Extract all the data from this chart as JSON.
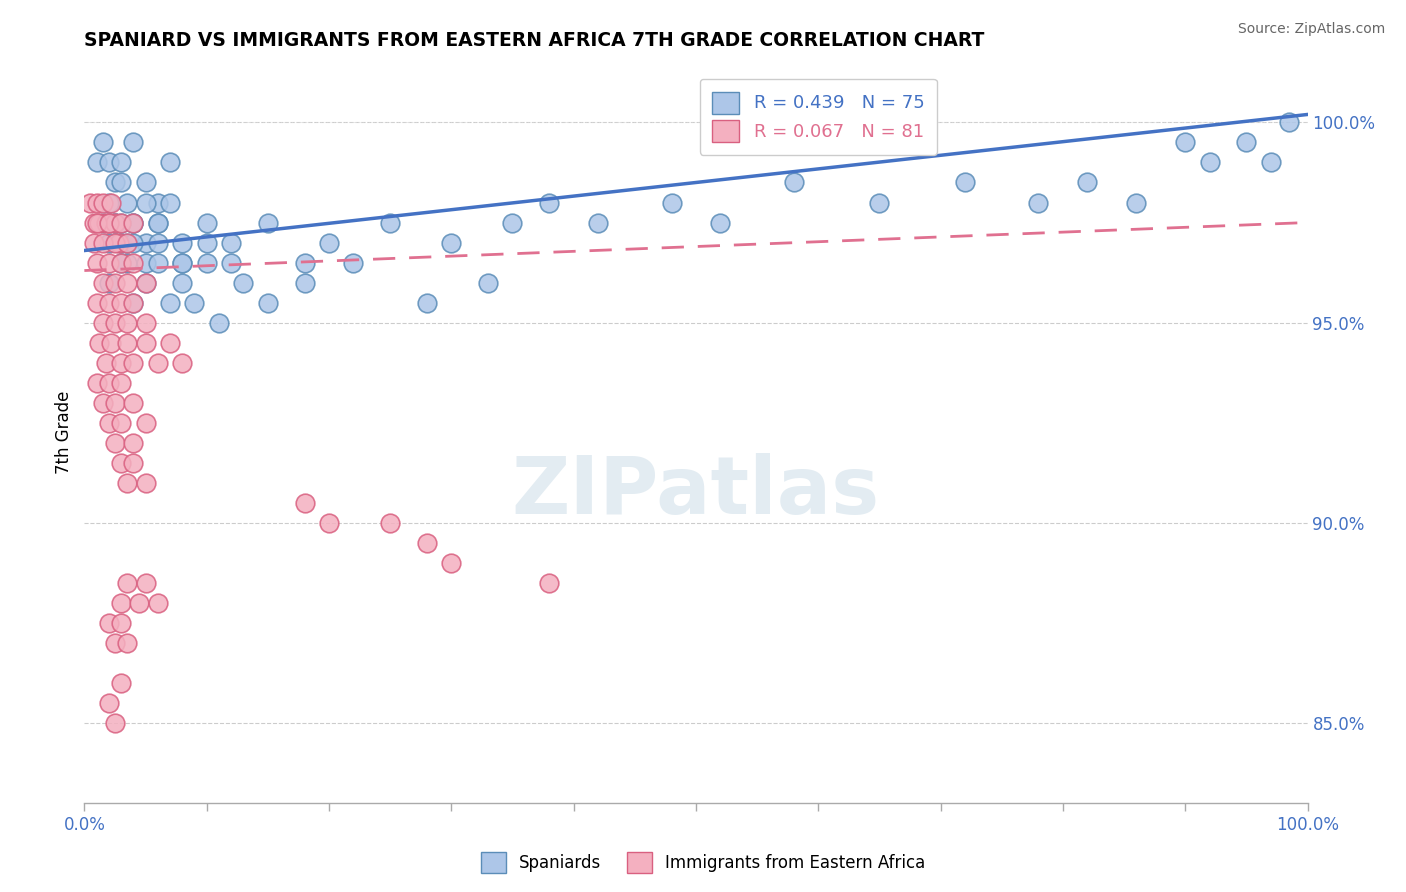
{
  "title": "SPANIARD VS IMMIGRANTS FROM EASTERN AFRICA 7TH GRADE CORRELATION CHART",
  "source_text": "Source: ZipAtlas.com",
  "ylabel": "7th Grade",
  "right_yticks": [
    85.0,
    90.0,
    95.0,
    100.0
  ],
  "right_yticklabels": [
    "85.0%",
    "90.0%",
    "95.0%",
    "100.0%"
  ],
  "xmin": 0.0,
  "xmax": 100.0,
  "ymin": 83.0,
  "ymax": 101.5,
  "spaniards_color": "#adc6e8",
  "spaniards_edge_color": "#5b8db8",
  "immigrants_color": "#f4b0c0",
  "immigrants_edge_color": "#d96080",
  "blue_line_color": "#4472c4",
  "pink_line_color": "#e07090",
  "legend_R_blue": "R = 0.439",
  "legend_N_blue": "N = 75",
  "legend_R_pink": "R = 0.067",
  "legend_N_pink": "N = 81",
  "legend_label_blue": "Spaniards",
  "legend_label_pink": "Immigrants from Eastern Africa",
  "watermark": "ZIPatlas",
  "blue_line_x": [
    0.0,
    100.0
  ],
  "blue_line_y": [
    96.8,
    100.2
  ],
  "pink_line_x": [
    0.0,
    100.0
  ],
  "pink_line_y": [
    96.3,
    97.5
  ],
  "spaniards_x": [
    1.0,
    1.5,
    2.0,
    2.5,
    3.0,
    3.5,
    4.0,
    5.0,
    6.0,
    7.0,
    1.5,
    2.0,
    2.5,
    3.0,
    3.5,
    4.0,
    5.0,
    6.0,
    7.0,
    8.0,
    2.0,
    2.5,
    3.0,
    3.5,
    4.0,
    5.0,
    6.0,
    8.0,
    10.0,
    12.0,
    3.0,
    4.0,
    5.0,
    6.0,
    8.0,
    10.0,
    12.0,
    15.0,
    18.0,
    20.0,
    25.0,
    30.0,
    35.0,
    38.0,
    42.0,
    48.0,
    52.0,
    58.0,
    65.0,
    72.0,
    78.0,
    82.0,
    86.0,
    90.0,
    92.0,
    95.0,
    97.0,
    98.5,
    2.0,
    3.0,
    4.0,
    5.0,
    6.0,
    7.0,
    8.0,
    9.0,
    10.0,
    11.0,
    13.0,
    15.0,
    18.0,
    22.0,
    28.0,
    33.0
  ],
  "spaniards_y": [
    99.0,
    99.5,
    99.0,
    98.5,
    99.0,
    98.0,
    99.5,
    98.5,
    98.0,
    99.0,
    97.5,
    98.0,
    97.5,
    98.5,
    97.0,
    97.5,
    98.0,
    97.5,
    98.0,
    97.0,
    97.0,
    97.5,
    97.0,
    96.5,
    97.5,
    97.0,
    97.5,
    96.5,
    97.0,
    96.5,
    97.5,
    97.0,
    96.5,
    97.0,
    96.5,
    97.5,
    97.0,
    97.5,
    96.5,
    97.0,
    97.5,
    97.0,
    97.5,
    98.0,
    97.5,
    98.0,
    97.5,
    98.5,
    98.0,
    98.5,
    98.0,
    98.5,
    98.0,
    99.5,
    99.0,
    99.5,
    99.0,
    100.0,
    96.0,
    96.5,
    95.5,
    96.0,
    96.5,
    95.5,
    96.0,
    95.5,
    96.5,
    95.0,
    96.0,
    95.5,
    96.0,
    96.5,
    95.5,
    96.0
  ],
  "immigrants_x": [
    0.5,
    0.8,
    1.0,
    1.2,
    1.5,
    1.8,
    2.0,
    2.2,
    2.5,
    2.8,
    0.8,
    1.0,
    1.5,
    2.0,
    2.5,
    3.0,
    3.5,
    4.0,
    1.0,
    1.5,
    2.0,
    2.5,
    3.0,
    3.5,
    4.0,
    5.0,
    1.0,
    1.5,
    2.0,
    2.5,
    3.0,
    3.5,
    4.0,
    5.0,
    1.2,
    1.8,
    2.2,
    3.0,
    3.5,
    4.0,
    5.0,
    6.0,
    7.0,
    8.0,
    1.0,
    1.5,
    2.0,
    2.5,
    3.0,
    4.0,
    2.0,
    2.5,
    3.0,
    4.0,
    5.0,
    3.0,
    3.5,
    4.0,
    5.0,
    18.0,
    20.0,
    25.0,
    28.0,
    30.0,
    38.0,
    3.0,
    3.5,
    4.5,
    5.0,
    6.0,
    2.0,
    2.5,
    3.0,
    3.5,
    2.0,
    2.5,
    3.0
  ],
  "immigrants_y": [
    98.0,
    97.5,
    98.0,
    97.5,
    98.0,
    97.5,
    97.5,
    98.0,
    97.5,
    97.0,
    97.0,
    97.5,
    97.0,
    97.5,
    97.0,
    97.5,
    97.0,
    97.5,
    96.5,
    96.0,
    96.5,
    96.0,
    96.5,
    96.0,
    96.5,
    96.0,
    95.5,
    95.0,
    95.5,
    95.0,
    95.5,
    95.0,
    95.5,
    95.0,
    94.5,
    94.0,
    94.5,
    94.0,
    94.5,
    94.0,
    94.5,
    94.0,
    94.5,
    94.0,
    93.5,
    93.0,
    93.5,
    93.0,
    93.5,
    93.0,
    92.5,
    92.0,
    92.5,
    92.0,
    92.5,
    91.5,
    91.0,
    91.5,
    91.0,
    90.5,
    90.0,
    90.0,
    89.5,
    89.0,
    88.5,
    88.0,
    88.5,
    88.0,
    88.5,
    88.0,
    87.5,
    87.0,
    87.5,
    87.0,
    85.5,
    85.0,
    86.0
  ]
}
